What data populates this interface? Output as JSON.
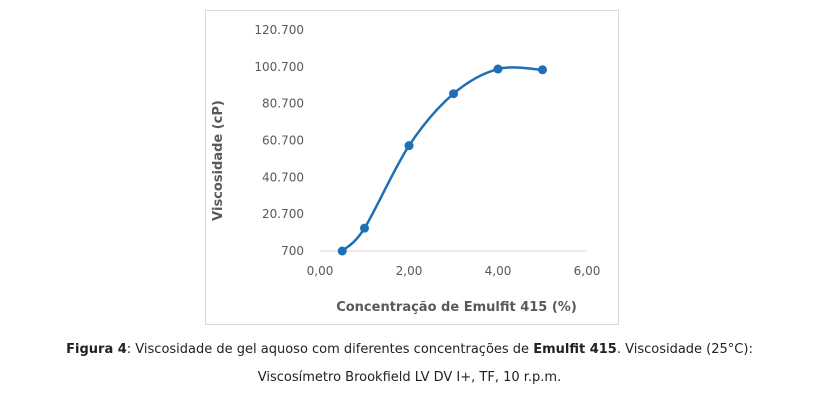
{
  "chart_data": {
    "type": "line",
    "smooth": true,
    "title": "",
    "xlabel": "Concentração de Emulfit 415 (%)",
    "ylabel": "Viscosidade (cP)",
    "xlim": [
      0,
      6
    ],
    "ylim": [
      700,
      120700
    ],
    "x_ticks": [
      "0,00",
      "2,00",
      "4,00",
      "6,00"
    ],
    "y_ticks": [
      "700",
      "20.700",
      "40.700",
      "60.700",
      "80.700",
      "100.700",
      "120.700"
    ],
    "x": [
      0.5,
      1.0,
      2.0,
      3.0,
      4.0,
      5.0
    ],
    "series": [
      {
        "values": [
          700,
          13100,
          57900,
          86100,
          99500,
          99100
        ]
      }
    ],
    "line_color": "#1f6fb5",
    "grid": false,
    "legend": "none"
  },
  "caption": {
    "fig_label": "Figura 4",
    "text_1": ": Viscosidade de gel aquoso com diferentes concentrações de ",
    "product": "Emulfit 415",
    "text_2": ". Viscosidade (25°C):",
    "line2": "Viscosímetro Brookfield LV DV I+, TF, 10 r.p.m."
  }
}
